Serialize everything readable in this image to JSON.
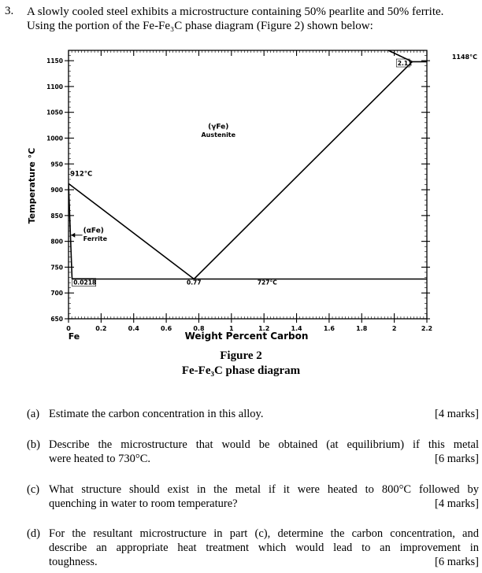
{
  "question": {
    "number": "3.",
    "line1": "A slowly cooled steel exhibits a microstructure containing 50% pearlite and 50% ferrite.",
    "line2": "Using the portion of the Fe-Fe₃C phase diagram (Figure 2) shown below:"
  },
  "figure": {
    "caption_title": "Figure 2",
    "caption_subtitle": "Fe-Fe₃C phase diagram"
  },
  "chart_data": {
    "type": "phase-diagram",
    "xlabel": "Weight Percent Carbon",
    "ylabel": "Temperature °C",
    "xlim": [
      0,
      2.2
    ],
    "ylim": [
      650,
      1170
    ],
    "x_ticks": [
      {
        "value": 0,
        "label": "0"
      },
      {
        "value": 0.2,
        "label": "0.2"
      },
      {
        "value": 0.4,
        "label": "0.4"
      },
      {
        "value": 0.6,
        "label": "0.6"
      },
      {
        "value": 0.8,
        "label": "0.8"
      },
      {
        "value": 1.0,
        "label": "1"
      },
      {
        "value": 1.2,
        "label": "1.2"
      },
      {
        "value": 1.4,
        "label": "1.4"
      },
      {
        "value": 1.6,
        "label": "1.6"
      },
      {
        "value": 1.8,
        "label": "1.8"
      },
      {
        "value": 2.0,
        "label": "2"
      },
      {
        "value": 2.2,
        "label": "2.2"
      }
    ],
    "y_ticks": [
      {
        "value": 650,
        "label": "650"
      },
      {
        "value": 700,
        "label": "700"
      },
      {
        "value": 750,
        "label": "750"
      },
      {
        "value": 800,
        "label": "800"
      },
      {
        "value": 850,
        "label": "850"
      },
      {
        "value": 900,
        "label": "900"
      },
      {
        "value": 950,
        "label": "950"
      },
      {
        "value": 1000,
        "label": "1000"
      },
      {
        "value": 1050,
        "label": "1050"
      },
      {
        "value": 1100,
        "label": "1100"
      },
      {
        "value": 1150,
        "label": "1150"
      }
    ],
    "x_origin_label": "Fe",
    "eutectoid_temperature": 727,
    "eutectic_temperature": 1148,
    "lines": [
      {
        "name": "A3",
        "points": [
          [
            0,
            912
          ],
          [
            0.77,
            727
          ]
        ]
      },
      {
        "name": "Acm",
        "points": [
          [
            0.77,
            727
          ],
          [
            2.11,
            1148
          ]
        ]
      },
      {
        "name": "alpha-solvus",
        "points": [
          [
            0,
            912
          ],
          [
            0.0218,
            727
          ]
        ]
      },
      {
        "name": "eutectoid",
        "points": [
          [
            0.0218,
            727
          ],
          [
            2.2,
            727
          ]
        ]
      },
      {
        "name": "eutectic",
        "points": [
          [
            2.11,
            1148
          ],
          [
            2.2,
            1148
          ]
        ]
      },
      {
        "name": "liquidus",
        "points": [
          [
            1.95,
            1172
          ],
          [
            2.11,
            1148
          ]
        ]
      }
    ],
    "annotations": [
      {
        "text": "912°C",
        "x": 0.01,
        "y": 927
      },
      {
        "text": "0.0218",
        "x": 0.03,
        "y": 716
      },
      {
        "text": "0.77",
        "x": 0.71,
        "y": 716
      },
      {
        "text": "727°C",
        "x": 1.22,
        "y": 716
      },
      {
        "text": "2.11",
        "x": 2.02,
        "y": 1141
      },
      {
        "text": "1148°C",
        "x": 2.26,
        "y": 1153
      },
      {
        "text": "(γFe)",
        "x": 0.92,
        "y": 1018
      },
      {
        "text": "Austenite",
        "x": 0.92,
        "y": 1002
      },
      {
        "text": "(αFe)",
        "x": 0.09,
        "y": 817
      },
      {
        "text": "Ferrite",
        "x": 0.09,
        "y": 801
      }
    ]
  },
  "parts": [
    {
      "label": "(a)",
      "lines": [
        "Estimate the carbon concentration in this alloy."
      ],
      "marks": "[4 marks]"
    },
    {
      "label": "(b)",
      "lines": [
        "Describe the microstructure that would be obtained (at equilibrium) if this metal",
        "were heated to 730°C."
      ],
      "marks": "[6 marks]"
    },
    {
      "label": "(c)",
      "lines": [
        "What structure should exist in the metal if it were heated to 800°C followed by",
        "quenching in water to room temperature?"
      ],
      "marks": "[4 marks]"
    },
    {
      "label": "(d)",
      "lines": [
        "For the resultant microstructure in part (c), determine the carbon concentration, and",
        "describe an appropriate heat treatment which would lead to an improvement in",
        "toughness."
      ],
      "marks": "[6 marks]"
    }
  ]
}
